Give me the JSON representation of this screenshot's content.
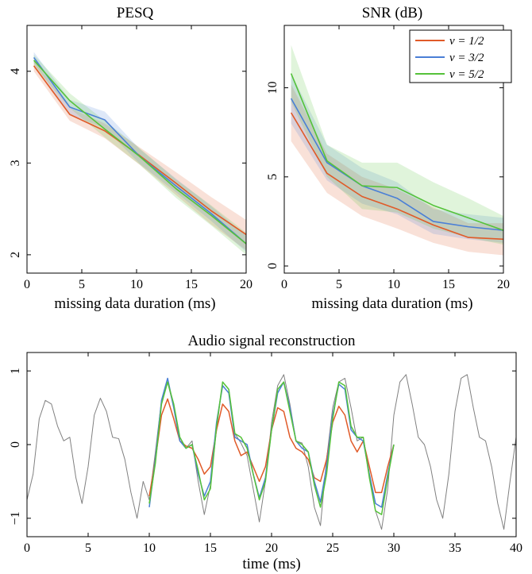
{
  "chart_data": [
    {
      "type": "line",
      "title": "PESQ",
      "xlabel": "missing data duration (ms)",
      "ylabel": "",
      "xlim": [
        0,
        20
      ],
      "ylim": [
        1.8,
        4.5
      ],
      "xticks": [
        0,
        5,
        10,
        15,
        20
      ],
      "yticks": [
        2,
        3,
        4
      ],
      "ytick_rotated": true,
      "grid": false,
      "x": [
        0.625,
        3.9,
        7.1,
        10.3,
        13.6,
        16.8,
        20
      ],
      "series": [
        {
          "name": "ν = 1/2",
          "color": "#e05a28",
          "values": [
            4.06,
            3.53,
            3.35,
            3.08,
            2.78,
            2.48,
            2.22
          ],
          "band_lower": [
            4.0,
            3.46,
            3.27,
            2.98,
            2.65,
            2.33,
            2.05
          ],
          "band_upper": [
            4.12,
            3.6,
            3.43,
            3.17,
            2.9,
            2.63,
            2.38
          ]
        },
        {
          "name": "ν = 3/2",
          "color": "#4a7fd6",
          "values": [
            4.15,
            3.61,
            3.47,
            3.07,
            2.75,
            2.45,
            2.12
          ],
          "band_lower": [
            4.09,
            3.53,
            3.38,
            2.99,
            2.68,
            2.37,
            2.03
          ],
          "band_upper": [
            4.21,
            3.69,
            3.56,
            3.15,
            2.83,
            2.53,
            2.21
          ]
        },
        {
          "name": "ν = 5/2",
          "color": "#55c23a",
          "values": [
            4.12,
            3.68,
            3.37,
            3.07,
            2.72,
            2.43,
            2.12
          ],
          "band_lower": [
            4.06,
            3.6,
            3.28,
            2.98,
            2.62,
            2.32,
            2.0
          ],
          "band_upper": [
            4.18,
            3.76,
            3.46,
            3.16,
            2.82,
            2.54,
            2.24
          ]
        }
      ]
    },
    {
      "type": "line",
      "title": "SNR (dB)",
      "xlabel": "missing data duration (ms)",
      "ylabel": "",
      "xlim": [
        0,
        20
      ],
      "ylim": [
        -0.4,
        13.5
      ],
      "xticks": [
        0,
        5,
        10,
        15,
        20
      ],
      "yticks": [
        0,
        5,
        10
      ],
      "ytick_rotated": true,
      "grid": false,
      "legend_position": "top-right",
      "x": [
        0.625,
        3.9,
        7.1,
        10.3,
        13.6,
        16.8,
        20
      ],
      "series": [
        {
          "name": "ν = 1/2",
          "color": "#e05a28",
          "values": [
            8.6,
            5.2,
            3.9,
            3.2,
            2.3,
            1.6,
            1.5
          ],
          "band_lower": [
            7.0,
            4.1,
            2.8,
            2.1,
            1.3,
            0.8,
            0.6
          ],
          "band_upper": [
            10.2,
            6.3,
            5.0,
            4.3,
            3.3,
            2.4,
            2.4
          ]
        },
        {
          "name": "ν = 3/2",
          "color": "#4a7fd6",
          "values": [
            9.4,
            5.8,
            4.5,
            3.8,
            2.5,
            2.2,
            2.0
          ],
          "band_lower": [
            8.0,
            4.8,
            3.5,
            2.9,
            1.8,
            1.5,
            1.3
          ],
          "band_upper": [
            10.8,
            6.8,
            5.5,
            4.7,
            3.2,
            2.9,
            2.7
          ]
        },
        {
          "name": "ν = 5/2",
          "color": "#55c23a",
          "values": [
            10.8,
            5.9,
            4.5,
            4.4,
            3.4,
            2.7,
            2.0
          ],
          "band_lower": [
            9.2,
            5.0,
            3.2,
            3.0,
            2.1,
            1.6,
            1.2
          ],
          "band_upper": [
            12.4,
            6.8,
            5.8,
            5.8,
            4.7,
            3.8,
            2.8
          ]
        }
      ]
    },
    {
      "type": "line",
      "title": "Audio signal reconstruction",
      "xlabel": "time (ms)",
      "ylabel": "",
      "xlim": [
        0,
        40
      ],
      "ylim": [
        -1.25,
        1.25
      ],
      "xticks": [
        0,
        5,
        10,
        15,
        20,
        25,
        30,
        35,
        40
      ],
      "yticks": [
        -1,
        0,
        1
      ],
      "ytick_rotated": true,
      "grid": false,
      "x_step": 0.125,
      "reconstruction_window": [
        10,
        30
      ],
      "series": [
        {
          "name": "",
          "color": "#808080",
          "role": "original signal",
          "x": [
            0,
            0.5,
            1,
            1.5,
            2,
            2.5,
            3,
            3.5,
            4,
            4.5,
            5,
            5.5,
            6,
            6.5,
            7,
            7.5,
            8,
            8.5,
            9,
            9.5,
            10,
            10.5,
            11,
            11.5,
            12,
            12.5,
            13,
            13.5,
            14,
            14.5,
            15,
            15.5,
            16,
            16.5,
            17,
            17.5,
            18,
            18.5,
            19,
            19.5,
            20,
            20.5,
            21,
            21.5,
            22,
            22.5,
            23,
            23.5,
            24,
            24.5,
            25,
            25.5,
            26,
            26.5,
            27,
            27.5,
            28,
            28.5,
            29,
            29.5,
            30,
            30.5,
            31,
            31.5,
            32,
            32.5,
            33,
            33.5,
            34,
            34.5,
            35,
            35.5,
            36,
            36.5,
            37,
            37.5,
            38,
            38.5,
            39,
            39.5,
            40
          ],
          "values": [
            -0.75,
            -0.4,
            0.35,
            0.6,
            0.55,
            0.25,
            0.05,
            0.1,
            -0.45,
            -0.8,
            -0.3,
            0.4,
            0.63,
            0.45,
            0.1,
            0.08,
            -0.2,
            -0.65,
            -1.0,
            -0.5,
            -0.75,
            -0.1,
            0.6,
            0.85,
            0.5,
            0.05,
            -0.05,
            0.05,
            -0.5,
            -0.95,
            -0.55,
            0.2,
            0.85,
            0.75,
            0.15,
            0.02,
            -0.15,
            -0.6,
            -1.05,
            -0.5,
            0.3,
            0.8,
            0.95,
            0.55,
            0.05,
            0.02,
            -0.3,
            -0.85,
            -1.1,
            -0.2,
            0.5,
            0.85,
            0.9,
            0.5,
            0.05,
            0.1,
            -0.4,
            -0.9,
            -1.15,
            -0.6,
            0.4,
            0.85,
            0.95,
            0.55,
            0.1,
            0.0,
            -0.3,
            -0.75,
            -1.0,
            -0.4,
            0.45,
            0.9,
            0.95,
            0.5,
            0.1,
            0.05,
            -0.3,
            -0.8,
            -1.15,
            -0.5,
            0.1
          ]
        },
        {
          "name": "ν = 1/2",
          "color": "#e05a28",
          "x": [
            10,
            10.5,
            11,
            11.5,
            12,
            12.5,
            13,
            13.5,
            14,
            14.5,
            15,
            15.5,
            16,
            16.5,
            17,
            17.5,
            18,
            18.5,
            19,
            19.5,
            20,
            20.5,
            21,
            21.5,
            22,
            22.5,
            23,
            23.5,
            24,
            24.5,
            25,
            25.5,
            26,
            26.5,
            27,
            27.5,
            28,
            28.5,
            29,
            29.5,
            30
          ],
          "values": [
            -0.7,
            -0.2,
            0.4,
            0.62,
            0.35,
            0.05,
            -0.02,
            -0.05,
            -0.2,
            -0.4,
            -0.3,
            0.2,
            0.55,
            0.45,
            0.05,
            -0.15,
            -0.1,
            -0.3,
            -0.5,
            -0.3,
            0.2,
            0.5,
            0.45,
            0.1,
            -0.05,
            -0.1,
            -0.2,
            -0.45,
            -0.5,
            -0.2,
            0.3,
            0.52,
            0.4,
            0.05,
            -0.1,
            0.05,
            -0.3,
            -0.65,
            -0.65,
            -0.3,
            0.0
          ]
        },
        {
          "name": "ν = 3/2",
          "color": "#4a7fd6",
          "x": [
            10,
            10.5,
            11,
            11.5,
            12,
            12.5,
            13,
            13.5,
            14,
            14.5,
            15,
            15.5,
            16,
            16.5,
            17,
            17.5,
            18,
            18.5,
            19,
            19.5,
            20,
            20.5,
            21,
            21.5,
            22,
            22.5,
            23,
            23.5,
            24,
            24.5,
            25,
            25.5,
            26,
            26.5,
            27,
            27.5,
            28,
            28.5,
            29,
            29.5,
            30
          ],
          "values": [
            -0.85,
            -0.2,
            0.6,
            0.9,
            0.5,
            0.05,
            -0.05,
            0.0,
            -0.4,
            -0.7,
            -0.5,
            0.3,
            0.8,
            0.7,
            0.1,
            0.05,
            0.0,
            -0.4,
            -0.72,
            -0.45,
            0.2,
            0.7,
            0.85,
            0.5,
            0.05,
            -0.05,
            -0.1,
            -0.5,
            -0.78,
            -0.3,
            0.4,
            0.82,
            0.75,
            0.2,
            0.1,
            0.05,
            -0.4,
            -0.8,
            -0.85,
            -0.4,
            0.0
          ]
        },
        {
          "name": "ν = 5/2",
          "color": "#55c23a",
          "x": [
            10,
            10.5,
            11,
            11.5,
            12,
            12.5,
            13,
            13.5,
            14,
            14.5,
            15,
            15.5,
            16,
            16.5,
            17,
            17.5,
            18,
            18.5,
            19,
            19.5,
            20,
            20.5,
            21,
            21.5,
            22,
            22.5,
            23,
            23.5,
            24,
            24.5,
            25,
            25.5,
            26,
            26.5,
            27,
            27.5,
            28,
            28.5,
            29,
            29.5,
            30
          ],
          "values": [
            -0.8,
            -0.25,
            0.55,
            0.85,
            0.55,
            0.1,
            -0.05,
            0.0,
            -0.35,
            -0.75,
            -0.6,
            0.25,
            0.85,
            0.75,
            0.15,
            0.1,
            -0.05,
            -0.4,
            -0.75,
            -0.5,
            0.2,
            0.75,
            0.85,
            0.45,
            0.05,
            0.0,
            -0.1,
            -0.55,
            -0.85,
            -0.4,
            0.35,
            0.85,
            0.8,
            0.25,
            0.1,
            0.1,
            -0.45,
            -0.9,
            -0.95,
            -0.45,
            0.0
          ]
        }
      ]
    }
  ],
  "legend": {
    "entries": [
      {
        "label": "ν = 1/2",
        "color": "#e05a28"
      },
      {
        "label": "ν = 3/2",
        "color": "#4a7fd6"
      },
      {
        "label": "ν = 5/2",
        "color": "#55c23a"
      }
    ]
  }
}
